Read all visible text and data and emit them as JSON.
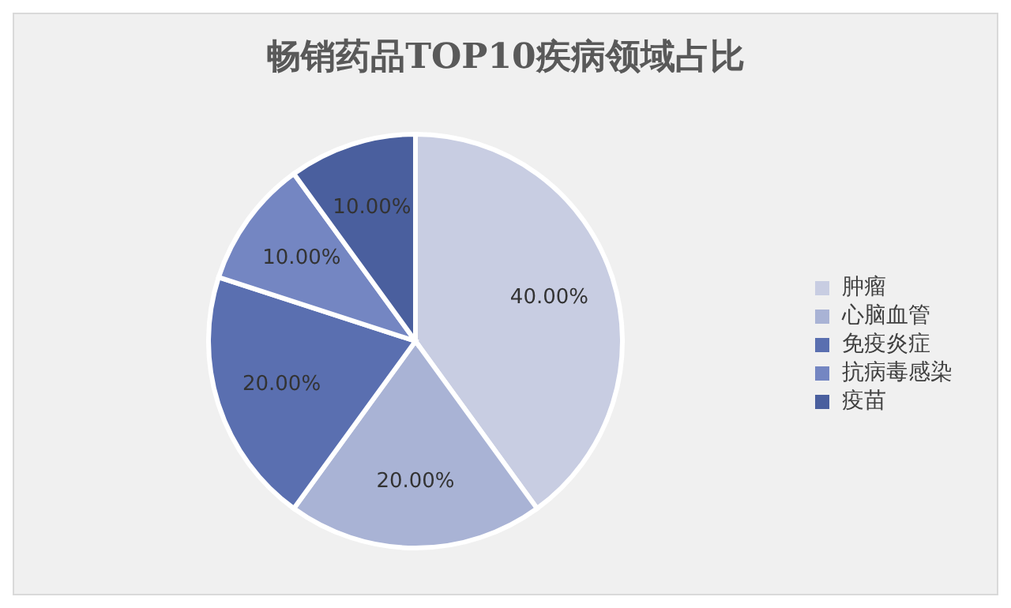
{
  "chart_data": {
    "type": "pie",
    "title": "畅销药品TOP10疾病领域占比",
    "categories": [
      "肿瘤",
      "心脑血管",
      "免疫炎症",
      "抗病毒感染",
      "疫苗"
    ],
    "values": [
      40,
      20,
      20,
      10,
      10
    ],
    "value_labels": [
      "40.00%",
      "20.00%",
      "20.00%",
      "10.00%",
      "10.00%"
    ],
    "colors": [
      "#c8cde2",
      "#a9b3d5",
      "#5a6fb0",
      "#7486c2",
      "#4a5f9e"
    ],
    "legend": "right"
  }
}
